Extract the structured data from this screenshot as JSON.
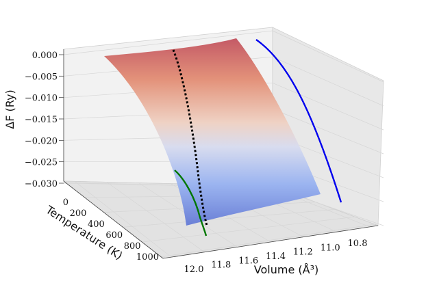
{
  "chart_data": {
    "type": "surface3d",
    "title": "",
    "zlabel": "ΔF (Ry)",
    "xlabel": "Volume (Å³)",
    "ylabel": "Temperature (K)",
    "zticks": [
      "0.000",
      "−0.005",
      "−0.010",
      "−0.015",
      "−0.020",
      "−0.025",
      "−0.030"
    ],
    "zlim": [
      -0.03,
      0.0
    ],
    "yticks": [
      "0",
      "200",
      "400",
      "600",
      "800",
      "1000"
    ],
    "ylim": [
      0,
      1000
    ],
    "xticks": [
      "12.0",
      "11.8",
      "11.6",
      "11.4",
      "11.2",
      "11.0",
      "10.8"
    ],
    "xlim": [
      10.7,
      12.1
    ],
    "surface_colormap": "coolwarm",
    "curves": [
      {
        "color": "#0000ee",
        "style": "solid",
        "description_points": [
          [
            10.95,
            0,
            0.0
          ],
          [
            10.8,
            1000,
            -0.028
          ]
        ]
      },
      {
        "color": "#000000",
        "style": "dotted",
        "description_points": [
          [
            11.6,
            0,
            0.0
          ],
          [
            11.8,
            1000,
            -0.03
          ]
        ]
      },
      {
        "color": "#007700",
        "style": "solid",
        "description_points": [
          [
            12.0,
            600,
            -0.026
          ],
          [
            11.9,
            1000,
            -0.03
          ]
        ]
      }
    ],
    "grid": true
  }
}
